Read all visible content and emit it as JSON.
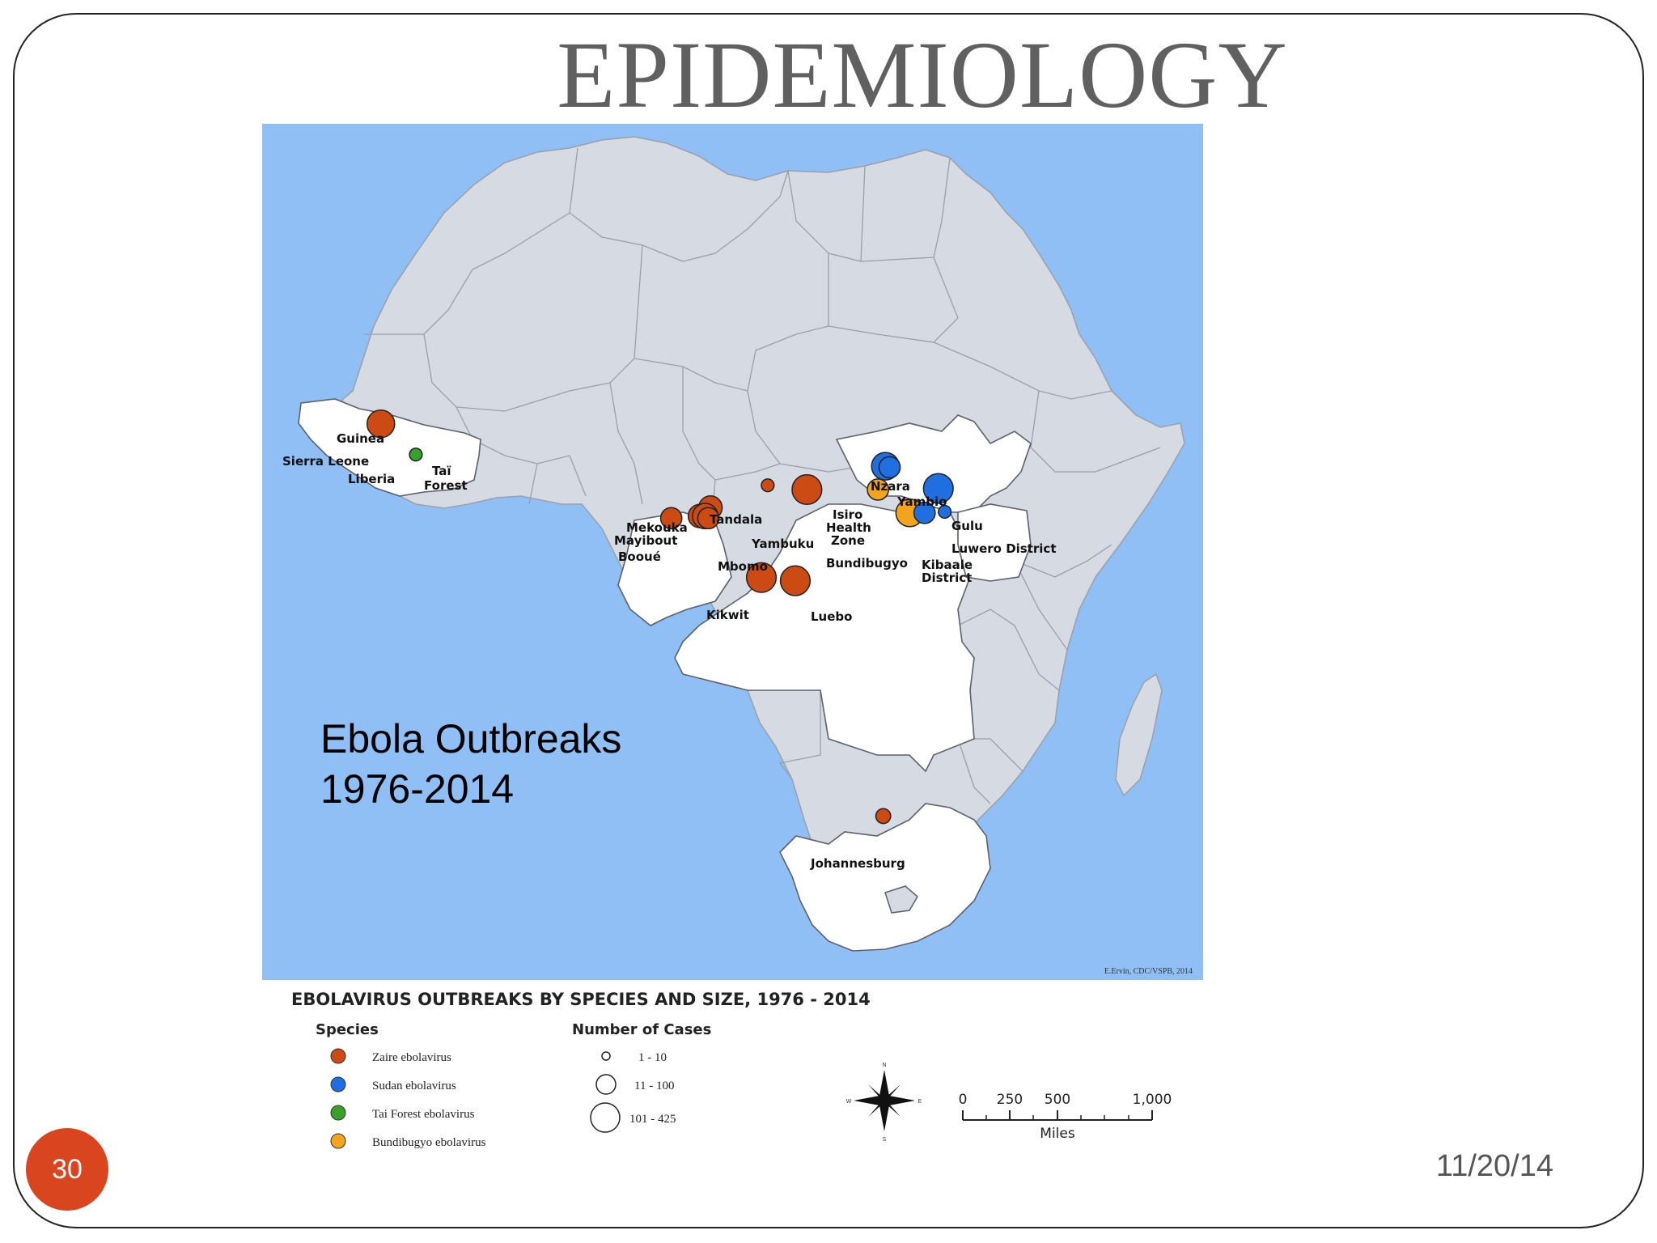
{
  "slide": {
    "title": "EPIDEMIOLOGY",
    "page_number": "30",
    "date": "11/20/14",
    "overlay_line1": "Ebola Outbreaks",
    "overlay_line2": "1976-2014",
    "accent_color": "#d9451f"
  },
  "map": {
    "credit": "E.Ervin, CDC/VSPB, 2014",
    "colors": {
      "ocean": "#8fbff5",
      "land": "#d6dae3",
      "highlight": "#ffffff",
      "border": "#8e939c",
      "zaire": "#cc4a14",
      "sudan": "#1f6fe0",
      "tai_forest": "#3aa02c",
      "bundibugyo": "#f2a51c"
    },
    "places": {
      "guinea": "Guinea",
      "sierra_leone": "Sierra Leone",
      "liberia": "Liberia",
      "tai_forest_1": "Taï",
      "tai_forest_2": "Forest",
      "mekouka": "Mekouka",
      "mayibout": "Mayibout",
      "booue": "Booué",
      "mbomo": "Mbomo",
      "tandala": "Tandala",
      "yambuku": "Yambuku",
      "isiro_1": "Isiro",
      "isiro_2": "Health",
      "isiro_3": "Zone",
      "nzara": "Nzara",
      "yambio": "Yambio",
      "gulu": "Gulu",
      "luwero": "Luwero District",
      "bundibugyo": "Bundibugyo",
      "kibaale_1": "Kibaale",
      "kibaale_2": "District",
      "kikwit": "Kikwit",
      "luebo": "Luebo",
      "johannesburg": "Johannesburg"
    }
  },
  "legend": {
    "title": "EBOLAVIRUS OUTBREAKS BY SPECIES AND SIZE, 1976 - 2014",
    "species_heading": "Species",
    "species": [
      {
        "label": "Zaire ebolavirus",
        "color": "#cc4a14"
      },
      {
        "label": "Sudan ebolavirus",
        "color": "#1f6fe0"
      },
      {
        "label": "Tai Forest ebolavirus",
        "color": "#3aa02c"
      },
      {
        "label": "Bundibugyo ebolavirus",
        "color": "#f2a51c"
      }
    ],
    "cases_heading": "Number of Cases",
    "cases": [
      "1 - 10",
      "11 - 100",
      "101 - 425"
    ],
    "compass": {
      "n": "N",
      "s": "S",
      "e": "E",
      "w": "W"
    },
    "scale": {
      "ticks": [
        "0",
        "250",
        "500",
        "1,000"
      ],
      "unit": "Miles"
    }
  }
}
